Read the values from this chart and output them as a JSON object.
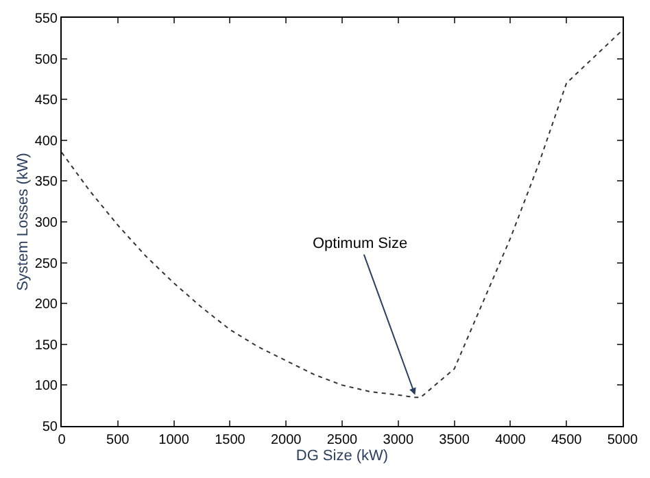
{
  "chart_data": {
    "type": "line",
    "xlabel": "DG Size (kW)",
    "ylabel": "System Losses (kW)",
    "x": [
      0,
      250,
      500,
      750,
      1000,
      1250,
      1500,
      1750,
      2000,
      2250,
      2500,
      2750,
      3000,
      3150,
      3200,
      3500,
      3750,
      4000,
      4250,
      4500,
      5000
    ],
    "series": [
      {
        "color": "#333333",
        "values": [
          385,
          338,
          296,
          258,
          225,
          195,
          168,
          147,
          130,
          113,
          100,
          92,
          88,
          85,
          85,
          120,
          200,
          280,
          370,
          470,
          535
        ]
      }
    ],
    "xlim": [
      0,
      5000
    ],
    "ylim": [
      50,
      550
    ],
    "xticks": [
      0,
      500,
      1000,
      1500,
      2000,
      2500,
      3000,
      3500,
      4000,
      4500,
      5000
    ],
    "yticks": [
      50,
      100,
      150,
      200,
      250,
      300,
      350,
      400,
      450,
      500,
      550
    ],
    "annotations": [
      {
        "text": "Optimum Size",
        "x": 3150,
        "y": 88
      }
    ],
    "marker": "none",
    "line_style": "dotted"
  }
}
